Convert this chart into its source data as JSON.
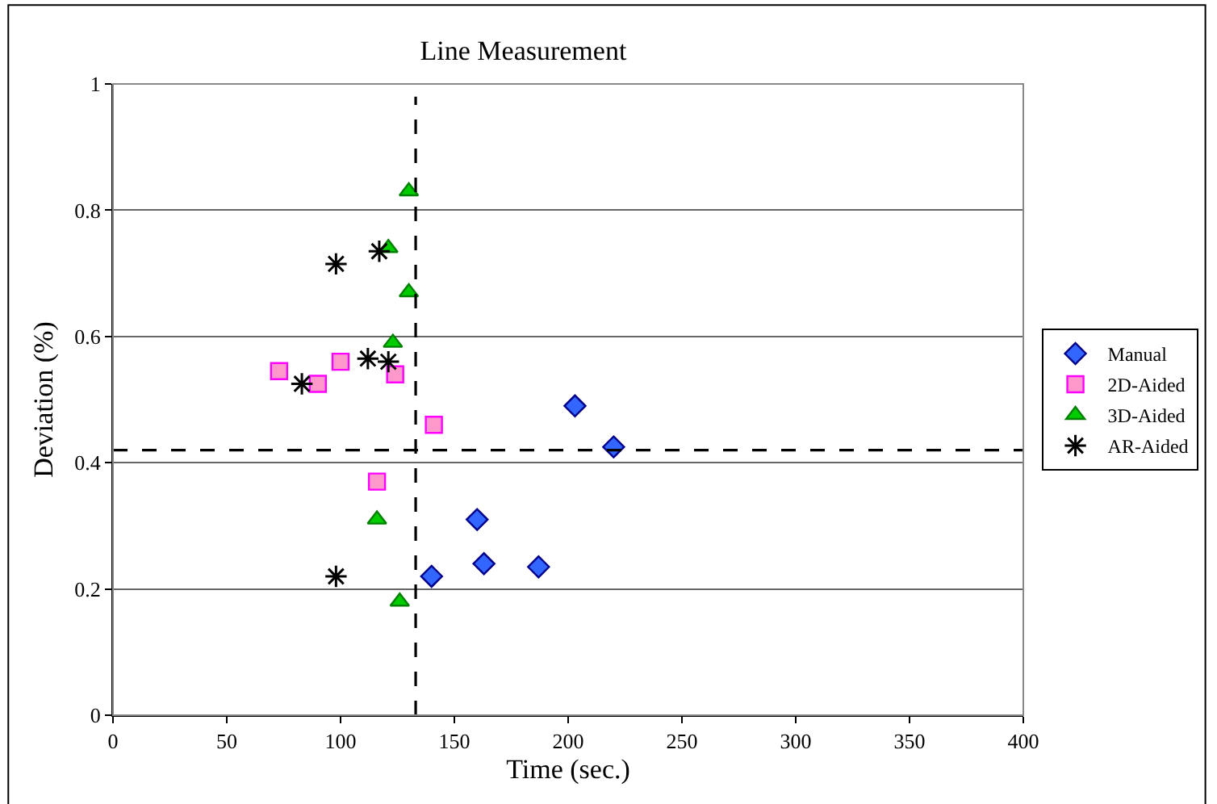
{
  "chart_data": {
    "type": "scatter",
    "title": "Line Measurement",
    "xlabel": "Time (sec.)",
    "ylabel": "Deviation (%)",
    "xlim": [
      0,
      400
    ],
    "xticks": [
      0,
      50,
      100,
      150,
      200,
      250,
      300,
      350,
      400
    ],
    "ylim": [
      0,
      1
    ],
    "yticks": [
      0,
      {
        "value": 0.2,
        "label": "0.2"
      },
      {
        "value": 0.4,
        "label": "0.4"
      },
      {
        "value": 0.6,
        "label": "0.6"
      },
      {
        "value": 0.8,
        "label": "0.8"
      },
      1
    ],
    "grid": "y",
    "legend": "right",
    "series": [
      {
        "name": "Manual",
        "color": "#3366ff",
        "marker": "diamond",
        "x": [
          140,
          160,
          163,
          187,
          203,
          220
        ],
        "values": [
          0.22,
          0.31,
          0.24,
          0.235,
          0.49,
          0.425
        ]
      },
      {
        "name": "2D-Aided",
        "color": "#ff99cc",
        "marker": "square",
        "x": [
          73,
          90,
          100,
          124,
          141,
          116
        ],
        "values": [
          0.545,
          0.525,
          0.56,
          0.54,
          0.46,
          0.37
        ]
      },
      {
        "name": "3D-Aided",
        "color": "#00cc00",
        "marker": "triangle",
        "x": [
          130,
          121,
          130,
          123,
          116,
          126
        ],
        "values": [
          0.83,
          0.74,
          0.67,
          0.59,
          0.31,
          0.18
        ]
      },
      {
        "name": "AR-Aided",
        "color": "#000000",
        "marker": "cross",
        "x": [
          98,
          117,
          83,
          112,
          121,
          98
        ],
        "values": [
          0.715,
          0.735,
          0.525,
          0.565,
          0.56,
          0.22
        ]
      }
    ],
    "ref_lines": [
      {
        "axis": "x",
        "value": 133,
        "label": null,
        "color": "#000000",
        "line_style": "dashed"
      },
      {
        "axis": "y",
        "value": 0.42,
        "label": null,
        "color": "#000000",
        "line_style": "dashed"
      }
    ]
  }
}
